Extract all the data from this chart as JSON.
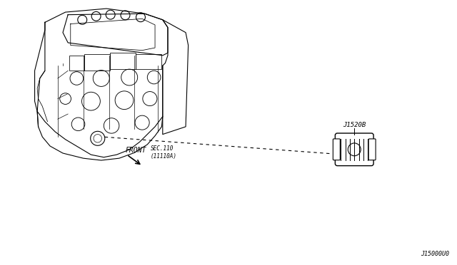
{
  "background_color": "#ffffff",
  "fig_width": 6.4,
  "fig_height": 3.72,
  "dpi": 100,
  "label_sec": "SEC.110\n(11110A)",
  "label_front": "FRONT",
  "label_part": "J1520B",
  "label_drawing": "J15000U0",
  "line_color": "#000000",
  "text_color": "#000000",
  "scale": 0.72,
  "ox": 15,
  "oy": 5
}
